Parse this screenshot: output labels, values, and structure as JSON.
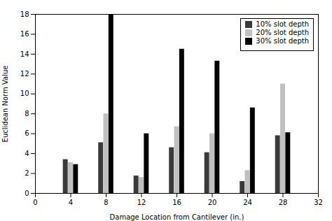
{
  "chart_data": {
    "type": "bar",
    "x": [
      4,
      8,
      12,
      16,
      20,
      24,
      28
    ],
    "series": [
      {
        "name": "10% slot depth",
        "color": "#3a3a3a",
        "values": [
          3.4,
          5.1,
          1.75,
          4.6,
          4.1,
          1.2,
          5.8
        ]
      },
      {
        "name": "20% slot depth",
        "color": "#c0c0c0",
        "values": [
          3.1,
          8.0,
          1.6,
          6.7,
          6.0,
          2.3,
          11.0
        ]
      },
      {
        "name": "30% slot depth",
        "color": "#000000",
        "values": [
          2.9,
          18.0,
          6.0,
          14.5,
          13.3,
          8.6,
          6.1
        ]
      }
    ],
    "xlabel": "Damage Location from Cantilever (in.)",
    "ylabel": "Euclidean Norm Value",
    "xlim": [
      0,
      32
    ],
    "ylim": [
      0,
      18
    ],
    "xticks": [
      0,
      4,
      8,
      12,
      16,
      20,
      24,
      28,
      32
    ],
    "yticks": [
      0,
      2,
      4,
      6,
      8,
      10,
      12,
      14,
      16,
      18
    ],
    "grid": false,
    "legend": "upper right"
  }
}
